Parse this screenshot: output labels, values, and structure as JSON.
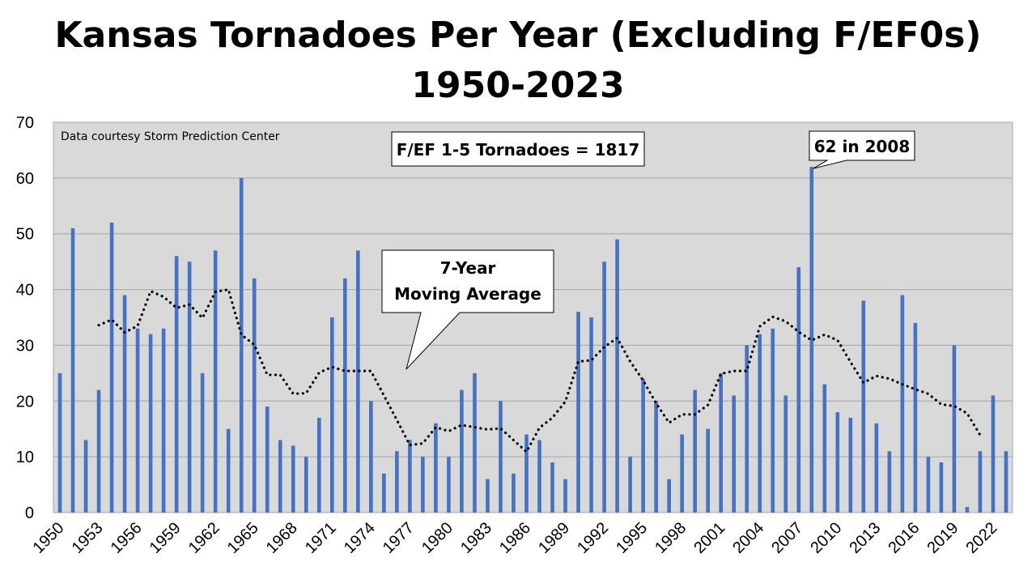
{
  "chart_data": {
    "type": "bar",
    "title": "Kansas Tornadoes Per Year (Excluding F/EF0s)",
    "subtitle": "1950-2023",
    "note": "Data courtesy Storm Prediction Center",
    "total_annotation": "F/EF 1-5 Tornadoes = 1817",
    "peak_annotation": "62 in 2008",
    "moving_average_label": [
      "7-Year",
      "Moving Average"
    ],
    "ylim": [
      0,
      70
    ],
    "yticks": [
      0,
      10,
      20,
      30,
      40,
      50,
      60,
      70
    ],
    "grid": true,
    "bar_color": "#4472C4",
    "plot_background": "#D9D9D9",
    "x_tick_labels": [
      "1950",
      "1953",
      "1956",
      "1959",
      "1962",
      "1965",
      "1968",
      "1971",
      "1974",
      "1977",
      "1980",
      "1983",
      "1986",
      "1989",
      "1992",
      "1995",
      "1998",
      "2001",
      "2004",
      "2007",
      "2010",
      "2013",
      "2016",
      "2019",
      "2022"
    ],
    "x_start": 1950,
    "values": [
      25,
      51,
      13,
      22,
      52,
      39,
      33,
      32,
      33,
      46,
      45,
      25,
      47,
      15,
      60,
      42,
      19,
      13,
      12,
      10,
      17,
      35,
      42,
      47,
      20,
      7,
      11,
      13,
      10,
      16,
      10,
      22,
      25,
      6,
      20,
      7,
      14,
      13,
      9,
      6,
      36,
      35,
      45,
      49,
      10,
      24,
      20,
      6,
      14,
      22,
      15,
      25,
      21,
      30,
      32,
      33,
      21,
      44,
      62,
      23,
      18,
      17,
      38,
      16,
      11,
      39,
      34,
      10,
      9,
      30,
      1,
      11,
      21,
      11
    ],
    "moving_average": [
      33.6,
      34.6,
      32.3,
      33.5,
      39.7,
      38.7,
      36.7,
      37.3,
      34.9,
      39.6,
      40.0,
      31.9,
      30.1,
      24.7,
      24.7,
      21.3,
      21.4,
      25.1,
      26.1,
      25.4,
      25.4,
      25.4,
      21.0,
      16.6,
      12.1,
      12.4,
      15.3,
      14.6,
      15.7,
      15.3,
      14.9,
      15.1,
      13.0,
      10.9,
      15.2,
      17.0,
      19.9,
      27.1,
      27.3,
      29.7,
      31.3,
      27.1,
      23.7,
      19.6,
      16.1,
      17.6,
      17.6,
      19.3,
      24.9,
      25.4,
      25.4,
      33.4,
      35.1,
      34.3,
      32.4,
      30.9,
      31.9,
      30.9,
      27.0,
      23.3,
      24.5,
      24.0,
      23.0,
      22.1,
      21.3,
      19.4,
      19.1,
      17.8,
      13.9
    ]
  }
}
